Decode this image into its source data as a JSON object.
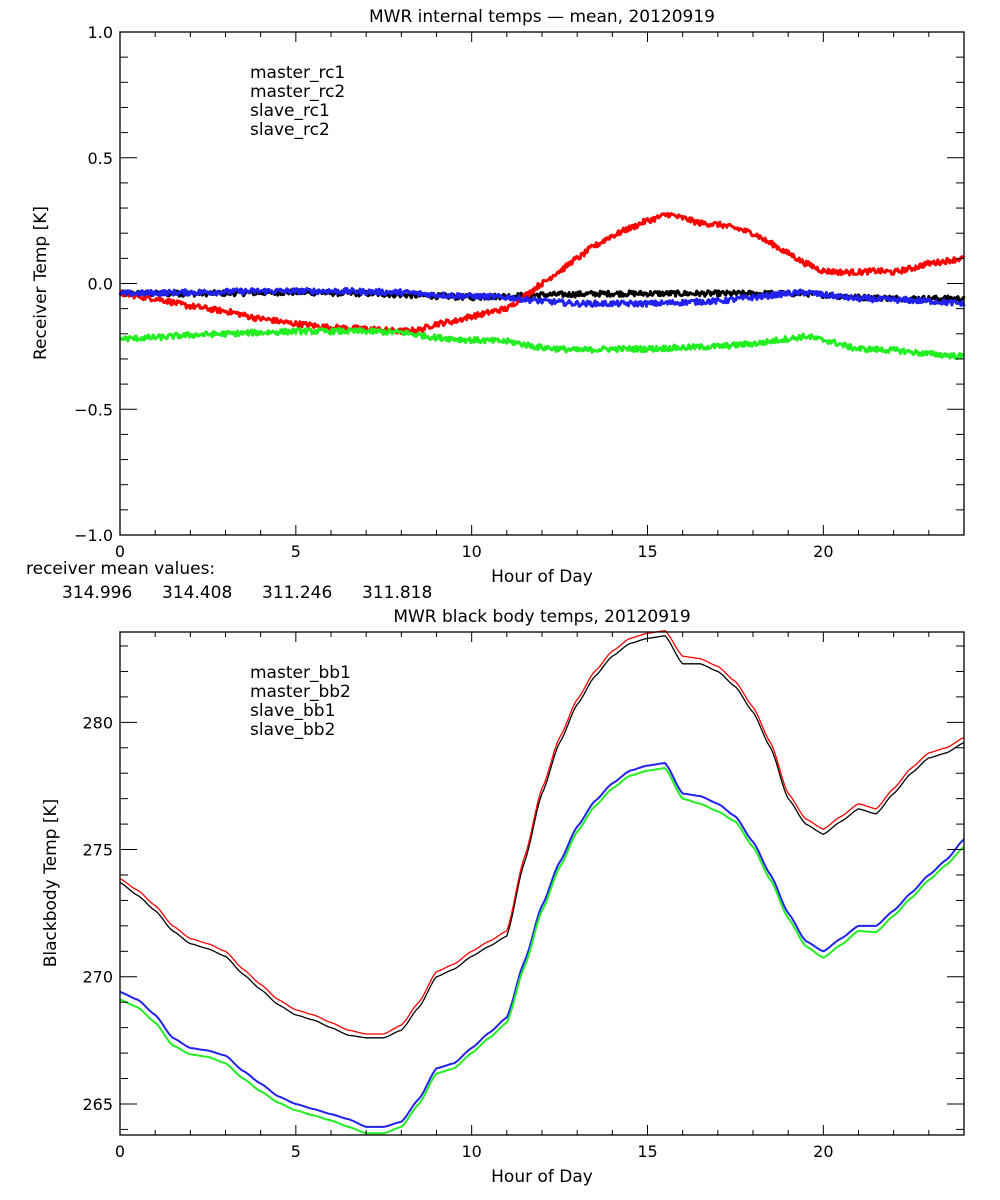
{
  "receiver_summary": {
    "label": "receiver mean values:",
    "values": [
      {
        "text": "314.996",
        "color": "#000000"
      },
      {
        "text": "314.408",
        "color": "#ff0000"
      },
      {
        "text": "311.246",
        "color": "#2222ee"
      },
      {
        "text": "311.818",
        "color": "#22ee22"
      }
    ]
  },
  "chart_data": [
    {
      "type": "line",
      "title": "MWR internal temps — mean, 20120919",
      "xlabel": "Hour of Day",
      "ylabel": "Receiver Temp [K]",
      "xlim": [
        0,
        24
      ],
      "ylim": [
        -1.0,
        1.0
      ],
      "xticks": [
        0,
        5,
        10,
        15,
        20
      ],
      "xtick_labels": [
        "0",
        "5",
        "10",
        "15",
        "20"
      ],
      "x_minor_step": 1,
      "yticks": [
        -1.0,
        -0.5,
        0.0,
        0.5,
        1.0
      ],
      "ytick_labels": [
        "−1.0",
        "−0.5",
        "0.0",
        "0.5",
        "1.0"
      ],
      "y_minor_step": 0.1,
      "grid": false,
      "legend_position": "top-left",
      "noisy": true,
      "series": [
        {
          "name": "master_rc1",
          "color": "#000000",
          "x": [
            0,
            2,
            5,
            7,
            9,
            10,
            11,
            12,
            14,
            16,
            18,
            19.5,
            21,
            22.5,
            24
          ],
          "y": [
            -0.04,
            -0.04,
            -0.035,
            -0.04,
            -0.05,
            -0.055,
            -0.05,
            -0.045,
            -0.04,
            -0.04,
            -0.04,
            -0.04,
            -0.055,
            -0.06,
            -0.06
          ]
        },
        {
          "name": "master_rc2",
          "color": "#ff0000",
          "x": [
            0,
            1,
            2,
            3,
            4,
            5,
            6,
            7,
            8,
            8.5,
            9,
            9.5,
            10,
            11,
            11.5,
            12,
            12.5,
            13,
            13.5,
            14,
            14.5,
            15,
            15.6,
            16,
            16.5,
            17,
            17.5,
            18,
            18.5,
            19,
            19.5,
            20,
            20.5,
            21,
            21.5,
            22,
            22.5,
            23,
            24
          ],
          "y": [
            -0.04,
            -0.06,
            -0.09,
            -0.11,
            -0.14,
            -0.16,
            -0.175,
            -0.18,
            -0.19,
            -0.185,
            -0.16,
            -0.15,
            -0.13,
            -0.1,
            -0.05,
            0.0,
            0.05,
            0.1,
            0.15,
            0.19,
            0.22,
            0.25,
            0.275,
            0.26,
            0.24,
            0.235,
            0.22,
            0.2,
            0.16,
            0.12,
            0.08,
            0.05,
            0.045,
            0.045,
            0.05,
            0.045,
            0.06,
            0.08,
            0.1
          ]
        },
        {
          "name": "slave_rc1",
          "color": "#2222ee",
          "x": [
            0,
            2,
            4,
            6,
            8,
            9,
            10,
            11,
            12,
            13,
            15,
            17,
            18,
            19,
            19.5,
            20,
            21,
            22,
            23,
            24
          ],
          "y": [
            -0.04,
            -0.035,
            -0.03,
            -0.03,
            -0.035,
            -0.045,
            -0.05,
            -0.055,
            -0.07,
            -0.08,
            -0.08,
            -0.07,
            -0.055,
            -0.04,
            -0.035,
            -0.045,
            -0.06,
            -0.065,
            -0.07,
            -0.08
          ]
        },
        {
          "name": "slave_rc2",
          "color": "#22ee22",
          "x": [
            0,
            1,
            2,
            3,
            4,
            5,
            6,
            7,
            8,
            9,
            10,
            11,
            12,
            13,
            14,
            15,
            16,
            17,
            18,
            19,
            19.5,
            20,
            21,
            22,
            23,
            24
          ],
          "y": [
            -0.22,
            -0.215,
            -0.205,
            -0.2,
            -0.195,
            -0.19,
            -0.19,
            -0.19,
            -0.195,
            -0.215,
            -0.225,
            -0.23,
            -0.255,
            -0.265,
            -0.26,
            -0.26,
            -0.255,
            -0.25,
            -0.24,
            -0.22,
            -0.21,
            -0.225,
            -0.26,
            -0.265,
            -0.28,
            -0.29
          ]
        }
      ]
    },
    {
      "type": "line",
      "title": "MWR black body temps, 20120919",
      "xlabel": "Hour of Day",
      "ylabel": "Blackbody Temp [K]",
      "xlim": [
        0,
        24
      ],
      "ylim": [
        263.78,
        283.55
      ],
      "xticks": [
        0,
        5,
        10,
        15,
        20
      ],
      "xtick_labels": [
        "0",
        "5",
        "10",
        "15",
        "20"
      ],
      "x_minor_step": 1,
      "yticks": [
        265,
        270,
        275,
        280
      ],
      "ytick_labels": [
        "265",
        "270",
        "275",
        "280"
      ],
      "y_minor_step": 1,
      "grid": false,
      "legend_position": "top-left",
      "noisy": false,
      "series": [
        {
          "name": "master_bb1",
          "color": "#000000",
          "x": [
            0,
            0.5,
            1,
            1.5,
            2,
            2.5,
            3,
            3.5,
            4,
            4.5,
            5,
            5.5,
            6,
            6.5,
            7,
            7.5,
            8,
            8.5,
            9,
            9.5,
            10,
            10.5,
            11,
            11.5,
            12,
            12.5,
            13,
            13.5,
            14,
            14.5,
            15,
            15.5,
            16,
            16.5,
            17,
            17.5,
            18,
            18.5,
            19,
            19.5,
            20,
            20.5,
            21,
            21.5,
            22,
            22.5,
            23,
            23.5,
            24
          ],
          "y": [
            273.7,
            273.2,
            272.6,
            271.8,
            271.3,
            271.1,
            270.8,
            270.1,
            269.5,
            268.9,
            268.5,
            268.3,
            268.0,
            267.7,
            267.6,
            267.6,
            267.9,
            268.8,
            270.0,
            270.3,
            270.8,
            271.2,
            271.6,
            274.5,
            277.2,
            279.2,
            280.7,
            281.8,
            282.6,
            283.1,
            283.3,
            283.4,
            282.3,
            282.3,
            282.0,
            281.4,
            280.4,
            279.0,
            277.0,
            276.0,
            275.6,
            276.1,
            276.6,
            276.4,
            277.2,
            278.0,
            278.6,
            278.8,
            279.2
          ]
        },
        {
          "name": "master_bb2",
          "color": "#ff0000",
          "x": [
            0,
            0.5,
            1,
            1.5,
            2,
            2.5,
            3,
            3.5,
            4,
            4.5,
            5,
            5.5,
            6,
            6.5,
            7,
            7.5,
            8,
            8.5,
            9,
            9.5,
            10,
            10.5,
            11,
            11.5,
            12,
            12.5,
            13,
            13.5,
            14,
            14.5,
            15,
            15.5,
            16,
            16.5,
            17,
            17.5,
            18,
            18.5,
            19,
            19.5,
            20,
            20.5,
            21,
            21.5,
            22,
            22.5,
            23,
            23.5,
            24
          ],
          "y": [
            273.85,
            273.4,
            272.8,
            272.0,
            271.5,
            271.3,
            271.0,
            270.3,
            269.7,
            269.1,
            268.7,
            268.5,
            268.2,
            267.9,
            267.75,
            267.75,
            268.1,
            269.0,
            270.2,
            270.5,
            271.0,
            271.4,
            271.8,
            274.7,
            277.4,
            279.4,
            280.9,
            282.0,
            282.8,
            283.3,
            283.5,
            283.6,
            282.6,
            282.5,
            282.2,
            281.6,
            280.6,
            279.2,
            277.2,
            276.2,
            275.8,
            276.3,
            276.8,
            276.6,
            277.4,
            278.2,
            278.8,
            279.0,
            279.4
          ]
        },
        {
          "name": "slave_bb1",
          "color": "#2222ee",
          "x": [
            0,
            0.5,
            1,
            1.5,
            2,
            2.5,
            3,
            3.5,
            4,
            4.5,
            5,
            5.5,
            6,
            6.5,
            7,
            7.5,
            8,
            8.5,
            9,
            9.5,
            10,
            10.5,
            11,
            11.5,
            12,
            12.5,
            13,
            13.5,
            14,
            14.5,
            15,
            15.5,
            16,
            16.5,
            17,
            17.5,
            18,
            18.5,
            19,
            19.5,
            20,
            20.5,
            21,
            21.5,
            22,
            22.5,
            23,
            23.5,
            24
          ],
          "y": [
            269.4,
            269.1,
            268.5,
            267.6,
            267.2,
            267.1,
            266.9,
            266.3,
            265.8,
            265.3,
            265.0,
            264.8,
            264.6,
            264.4,
            264.1,
            264.1,
            264.3,
            265.2,
            266.4,
            266.6,
            267.2,
            267.8,
            268.4,
            270.6,
            272.8,
            274.5,
            275.9,
            276.9,
            277.6,
            278.1,
            278.3,
            278.4,
            277.2,
            277.1,
            276.8,
            276.3,
            275.3,
            274.0,
            272.5,
            271.4,
            271.0,
            271.5,
            272.0,
            272.0,
            272.6,
            273.3,
            274.0,
            274.6,
            275.4
          ]
        },
        {
          "name": "slave_bb2",
          "color": "#22ee22",
          "x": [
            0,
            0.5,
            1,
            1.5,
            2,
            2.5,
            3,
            3.5,
            4,
            4.5,
            5,
            5.5,
            6,
            6.5,
            7,
            7.5,
            8,
            8.5,
            9,
            9.5,
            10,
            10.5,
            11,
            11.5,
            12,
            12.5,
            13,
            13.5,
            14,
            14.5,
            15,
            15.5,
            16,
            16.5,
            17,
            17.5,
            18,
            18.5,
            19,
            19.5,
            20,
            20.5,
            21,
            21.5,
            22,
            22.5,
            23,
            23.5,
            24
          ],
          "y": [
            269.1,
            268.8,
            268.2,
            267.3,
            266.95,
            266.85,
            266.6,
            266.0,
            265.5,
            265.05,
            264.75,
            264.55,
            264.35,
            264.1,
            263.85,
            263.85,
            264.1,
            265.0,
            266.2,
            266.4,
            267.0,
            267.6,
            268.2,
            270.4,
            272.6,
            274.3,
            275.7,
            276.7,
            277.4,
            277.9,
            278.1,
            278.2,
            277.0,
            276.8,
            276.5,
            276.1,
            275.1,
            273.8,
            272.3,
            271.2,
            270.75,
            271.25,
            271.8,
            271.75,
            272.4,
            273.1,
            273.8,
            274.4,
            275.1
          ]
        }
      ]
    }
  ]
}
